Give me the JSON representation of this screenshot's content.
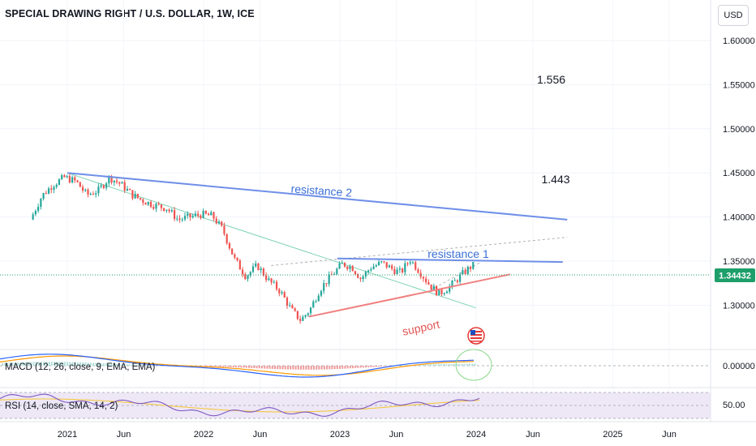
{
  "header": {
    "title": "SPECIAL DRAWING RIGHT / U.S. DOLLAR, 1W, ICE",
    "currency": "USD"
  },
  "colors": {
    "up": "#26a69a",
    "down": "#ef5350",
    "resistance": "#6f8fe8",
    "support": "#f08080",
    "trend": "#7fd3b4",
    "macd": "#2962ff",
    "signal": "#ff9800",
    "rsi": "#7e57c2",
    "rsi_ma": "#f5c842",
    "price_tag": "#1e9e6a"
  },
  "chart_data": {
    "type": "candlestick",
    "title": "SPECIAL DRAWING RIGHT / U.S. DOLLAR, 1W, ICE",
    "y_axis": {
      "label": "USD",
      "ticks": [
        "1.60000",
        "1.55000",
        "1.50000",
        "1.45000",
        "1.40000",
        "1.35000",
        "1.30000"
      ],
      "range": [
        1.262,
        1.616
      ]
    },
    "x_axis": {
      "ticks": [
        "2021",
        "Jun",
        "2022",
        "Jun",
        "2023",
        "Jun",
        "2024",
        "Jun",
        "2025",
        "Jun"
      ]
    },
    "last_price": "1.34432",
    "trend": [
      [
        "2020-10-01",
        1.397
      ],
      [
        "2020-11-01",
        1.424
      ],
      [
        "2020-12-01",
        1.437
      ],
      [
        "2021-01-01",
        1.445
      ],
      [
        "2021-02-01",
        1.44
      ],
      [
        "2021-03-01",
        1.425
      ],
      [
        "2021-04-01",
        1.43
      ],
      [
        "2021-05-01",
        1.445
      ],
      [
        "2021-06-01",
        1.437
      ],
      [
        "2021-07-01",
        1.425
      ],
      [
        "2021-08-01",
        1.418
      ],
      [
        "2021-09-01",
        1.413
      ],
      [
        "2021-10-01",
        1.41
      ],
      [
        "2021-11-01",
        1.397
      ],
      [
        "2021-12-01",
        1.4
      ],
      [
        "2022-01-01",
        1.403
      ],
      [
        "2022-02-01",
        1.401
      ],
      [
        "2022-03-01",
        1.385
      ],
      [
        "2022-04-01",
        1.352
      ],
      [
        "2022-05-01",
        1.333
      ],
      [
        "2022-06-01",
        1.345
      ],
      [
        "2022-07-01",
        1.328
      ],
      [
        "2022-08-01",
        1.316
      ],
      [
        "2022-09-01",
        1.294
      ],
      [
        "2022-09-25",
        1.283
      ],
      [
        "2022-10-20",
        1.295
      ],
      [
        "2022-11-15",
        1.318
      ],
      [
        "2022-12-15",
        1.333
      ],
      [
        "2023-01-15",
        1.347
      ],
      [
        "2023-02-10",
        1.343
      ],
      [
        "2023-03-05",
        1.33
      ],
      [
        "2023-04-01",
        1.343
      ],
      [
        "2023-05-01",
        1.348
      ],
      [
        "2023-06-01",
        1.34
      ],
      [
        "2023-06-20",
        1.337
      ],
      [
        "2023-07-15",
        1.352
      ],
      [
        "2023-08-10",
        1.338
      ],
      [
        "2023-09-05",
        1.323
      ],
      [
        "2023-10-01",
        1.313
      ],
      [
        "2023-11-01",
        1.322
      ],
      [
        "2023-12-01",
        1.335
      ],
      [
        "2023-12-28",
        1.345
      ]
    ],
    "drawings": {
      "resistance_2": {
        "label": "resistance 2",
        "from": [
          "2021-01-01",
          1.45
        ],
        "to": [
          "2024-09-01",
          1.397
        ]
      },
      "resistance_1": {
        "label": "resistance 1",
        "from": [
          "2022-12-25",
          1.353
        ],
        "to": [
          "2024-08-20",
          1.349
        ]
      },
      "support": {
        "label": "support",
        "from": [
          "2022-10-10",
          1.287
        ],
        "to": [
          "2024-04-01",
          1.335
        ]
      },
      "green_trendline": {
        "from": [
          "2021-01-01",
          1.45
        ],
        "to": [
          "2024-01-01",
          1.297
        ]
      },
      "dashed_channel": {
        "from": [
          "2022-07-01",
          1.345
        ],
        "to": [
          "2024-09-01",
          1.377
        ]
      },
      "dashed_lower": {
        "from": [
          "2023-09-01",
          1.317
        ],
        "to": [
          "2024-01-10",
          1.348
        ]
      }
    },
    "annotations": [
      {
        "text": "1.556",
        "at": [
          "2024-07-20",
          1.556
        ]
      },
      {
        "text": "1.443",
        "at": [
          "2024-08-01",
          1.443
        ]
      }
    ],
    "macd": {
      "label": "MACD (12, 26, close, 9, EMA, EMA)",
      "tick": "0.00000"
    },
    "rsi": {
      "label": "RSI (14, close, SMA, 14, 2)",
      "tick": "50.00"
    }
  }
}
